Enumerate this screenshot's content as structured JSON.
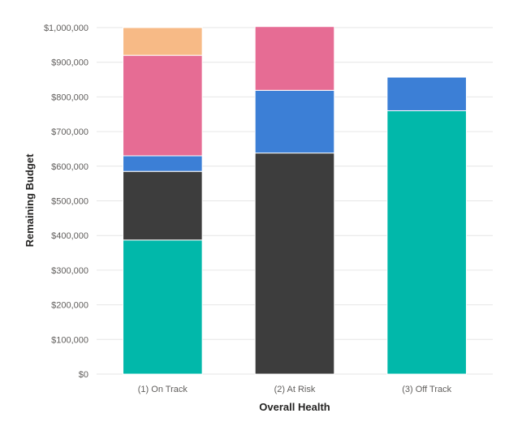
{
  "chart_data": {
    "type": "bar",
    "stacked": true,
    "categories": [
      "(1) On Track",
      "(2) At Risk",
      "(3) Off Track"
    ],
    "xlabel": "Overall Health",
    "ylabel": "Remaining Budget",
    "ylim": [
      0,
      1000000
    ],
    "yticks": [
      0,
      100000,
      200000,
      300000,
      400000,
      500000,
      600000,
      700000,
      800000,
      900000,
      1000000
    ],
    "ytick_labels": [
      "$0",
      "$100,000",
      "$200,000",
      "$300,000",
      "$400,000",
      "$500,000",
      "$600,000",
      "$700,000",
      "$800,000",
      "$900,000",
      "$1,000,000"
    ],
    "grid": true,
    "legend": "none",
    "series": [
      {
        "color": "#01B8AA",
        "values": [
          387000,
          0,
          760000
        ]
      },
      {
        "color": "#3D3D3D",
        "values": [
          198000,
          638000,
          0
        ]
      },
      {
        "color": "#3C7FD6",
        "values": [
          45000,
          181000,
          97000
        ]
      },
      {
        "color": "#E66C94",
        "values": [
          290000,
          184000,
          0
        ]
      },
      {
        "color": "#F7BA86",
        "values": [
          80000,
          0,
          0
        ]
      }
    ]
  }
}
